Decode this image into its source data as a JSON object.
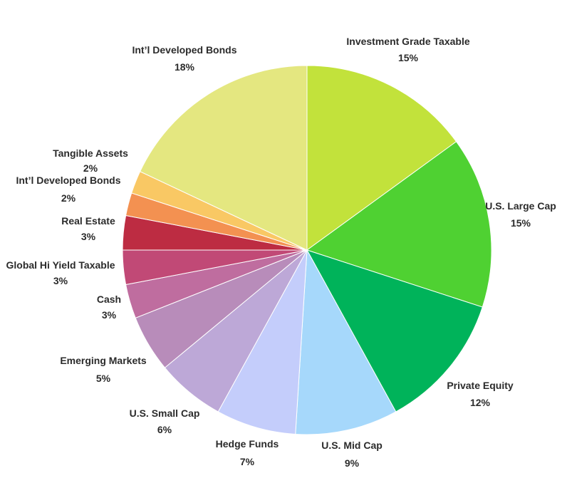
{
  "chart_data": {
    "type": "pie",
    "title": "",
    "start_angle_deg": 0,
    "direction": "clockwise",
    "legend": "none",
    "slices": [
      {
        "label": "Investment Grade Taxable",
        "value": 15,
        "value_label": "15%",
        "color": "#c2e23b"
      },
      {
        "label": "U.S. Large Cap",
        "value": 15,
        "value_label": "15%",
        "color": "#4fd132"
      },
      {
        "label": "Private Equity",
        "value": 12,
        "value_label": "12%",
        "color": "#00b35a"
      },
      {
        "label": "U.S. Mid Cap",
        "value": 9,
        "value_label": "9%",
        "color": "#a6d8fb"
      },
      {
        "label": "Hedge Funds",
        "value": 7,
        "value_label": "7%",
        "color": "#c4cdfb"
      },
      {
        "label": "U.S. Small Cap",
        "value": 6,
        "value_label": "6%",
        "color": "#bda8d7"
      },
      {
        "label": "Emerging Markets",
        "value": 5,
        "value_label": "5%",
        "color": "#b88cba"
      },
      {
        "label": "Cash",
        "value": 3,
        "value_label": "3%",
        "color": "#bf6d9f"
      },
      {
        "label": "Global Hi Yield Taxable",
        "value": 3,
        "value_label": "3%",
        "color": "#c14976"
      },
      {
        "label": "Real Estate",
        "value": 3,
        "value_label": "3%",
        "color": "#bd2c42"
      },
      {
        "label": "Int’l Developed Bonds",
        "value": 2,
        "value_label": "2%",
        "color": "#f39151"
      },
      {
        "label": "Tangible Assets",
        "value": 2,
        "value_label": "2%",
        "color": "#f9c864"
      },
      {
        "label": "Int’l Developed Bonds",
        "value": 18,
        "value_label": "18%",
        "color": "#e4e780"
      }
    ]
  }
}
